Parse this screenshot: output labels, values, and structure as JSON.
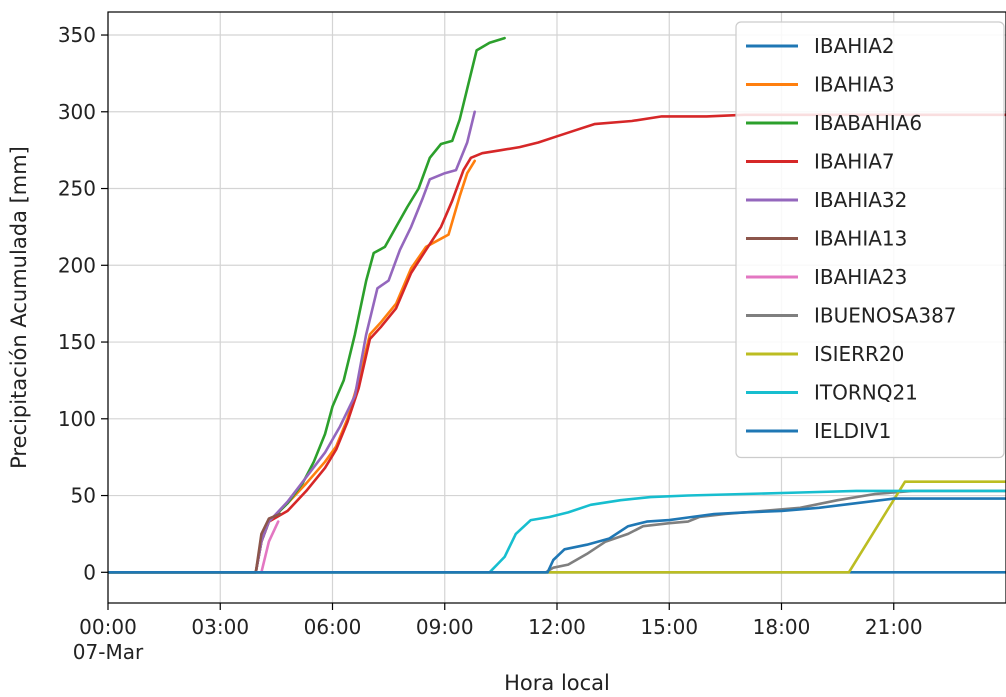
{
  "chart_data": {
    "type": "line",
    "title": "",
    "xlabel": "Hora local",
    "ylabel": "Precipitación Acumulada [mm]",
    "x_unit": "hours since 00:00 07-Mar",
    "xlim": [
      0,
      24
    ],
    "ylim": [
      -20,
      365
    ],
    "grid": true,
    "legend_position": "top-right",
    "x_ticks": [
      {
        "value": 0,
        "label": "00:00",
        "sublabel": "07-Mar"
      },
      {
        "value": 3,
        "label": "03:00",
        "sublabel": ""
      },
      {
        "value": 6,
        "label": "06:00",
        "sublabel": ""
      },
      {
        "value": 9,
        "label": "09:00",
        "sublabel": ""
      },
      {
        "value": 12,
        "label": "12:00",
        "sublabel": ""
      },
      {
        "value": 15,
        "label": "15:00",
        "sublabel": ""
      },
      {
        "value": 18,
        "label": "18:00",
        "sublabel": ""
      },
      {
        "value": 21,
        "label": "21:00",
        "sublabel": ""
      }
    ],
    "y_ticks": [
      0,
      50,
      100,
      150,
      200,
      250,
      300,
      350
    ],
    "series": [
      {
        "name": "IBAHIA2",
        "color": "#1f77b4",
        "points": [
          [
            0,
            0
          ],
          [
            24,
            0
          ]
        ]
      },
      {
        "name": "IBAHIA3",
        "color": "#ff7f0e",
        "points": [
          [
            0,
            0
          ],
          [
            3.95,
            0
          ],
          [
            4.1,
            20
          ],
          [
            4.3,
            33
          ],
          [
            4.8,
            45
          ],
          [
            5.3,
            58
          ],
          [
            5.8,
            72
          ],
          [
            6.1,
            82
          ],
          [
            6.4,
            100
          ],
          [
            6.7,
            125
          ],
          [
            7.0,
            155
          ],
          [
            7.3,
            163
          ],
          [
            7.7,
            175
          ],
          [
            8.1,
            198
          ],
          [
            8.5,
            212
          ],
          [
            8.8,
            216
          ],
          [
            9.1,
            220
          ],
          [
            9.4,
            245
          ],
          [
            9.6,
            260
          ],
          [
            9.8,
            268
          ]
        ]
      },
      {
        "name": "IBABAHIA6",
        "color": "#2ca02c",
        "points": [
          [
            0,
            0
          ],
          [
            3.95,
            0
          ],
          [
            4.1,
            20
          ],
          [
            4.3,
            33
          ],
          [
            4.8,
            45
          ],
          [
            5.2,
            58
          ],
          [
            5.5,
            72
          ],
          [
            5.8,
            90
          ],
          [
            6.0,
            108
          ],
          [
            6.3,
            125
          ],
          [
            6.6,
            155
          ],
          [
            6.9,
            190
          ],
          [
            7.1,
            208
          ],
          [
            7.4,
            212
          ],
          [
            7.7,
            225
          ],
          [
            8.0,
            238
          ],
          [
            8.3,
            250
          ],
          [
            8.6,
            270
          ],
          [
            8.9,
            279
          ],
          [
            9.2,
            281
          ],
          [
            9.4,
            295
          ],
          [
            9.6,
            315
          ],
          [
            9.85,
            340
          ],
          [
            10.2,
            345
          ],
          [
            10.6,
            348
          ]
        ]
      },
      {
        "name": "IBAHIA7",
        "color": "#d62728",
        "points": [
          [
            0,
            0
          ],
          [
            3.95,
            0
          ],
          [
            4.1,
            20
          ],
          [
            4.3,
            33
          ],
          [
            4.8,
            40
          ],
          [
            5.3,
            53
          ],
          [
            5.8,
            68
          ],
          [
            6.1,
            80
          ],
          [
            6.4,
            98
          ],
          [
            6.7,
            120
          ],
          [
            7.0,
            152
          ],
          [
            7.3,
            160
          ],
          [
            7.7,
            172
          ],
          [
            8.1,
            195
          ],
          [
            8.5,
            210
          ],
          [
            8.9,
            225
          ],
          [
            9.2,
            242
          ],
          [
            9.5,
            262
          ],
          [
            9.7,
            270
          ],
          [
            10.0,
            273
          ],
          [
            10.5,
            275
          ],
          [
            11.0,
            277
          ],
          [
            11.5,
            280
          ],
          [
            12.0,
            284
          ],
          [
            12.5,
            288
          ],
          [
            13.0,
            292
          ],
          [
            14.0,
            294
          ],
          [
            14.8,
            297
          ],
          [
            16.0,
            297
          ],
          [
            17.0,
            298
          ],
          [
            18.0,
            298
          ],
          [
            20.0,
            298
          ],
          [
            22.0,
            298
          ],
          [
            24.0,
            298
          ]
        ]
      },
      {
        "name": "IBAHIA32",
        "color": "#9467bd",
        "points": [
          [
            0,
            0
          ],
          [
            3.95,
            0
          ],
          [
            4.1,
            20
          ],
          [
            4.3,
            33
          ],
          [
            4.8,
            46
          ],
          [
            5.3,
            62
          ],
          [
            5.8,
            78
          ],
          [
            6.2,
            95
          ],
          [
            6.6,
            115
          ],
          [
            6.9,
            155
          ],
          [
            7.2,
            185
          ],
          [
            7.5,
            190
          ],
          [
            7.8,
            210
          ],
          [
            8.1,
            225
          ],
          [
            8.4,
            243
          ],
          [
            8.6,
            256
          ],
          [
            9.0,
            260
          ],
          [
            9.3,
            262
          ],
          [
            9.6,
            280
          ],
          [
            9.8,
            300
          ]
        ]
      },
      {
        "name": "IBAHIA13",
        "color": "#8c564b",
        "points": [
          [
            0,
            0
          ],
          [
            3.95,
            0
          ],
          [
            4.1,
            25
          ],
          [
            4.3,
            35
          ],
          [
            4.6,
            38
          ]
        ]
      },
      {
        "name": "IBAHIA23",
        "color": "#e377c2",
        "points": [
          [
            0,
            0
          ],
          [
            4.1,
            0
          ],
          [
            4.3,
            20
          ],
          [
            4.55,
            33
          ]
        ]
      },
      {
        "name": "IBUENOSA387",
        "color": "#7f7f7f",
        "points": [
          [
            0,
            0
          ],
          [
            11.7,
            0
          ],
          [
            11.9,
            3
          ],
          [
            12.3,
            5
          ],
          [
            12.8,
            12
          ],
          [
            13.3,
            20
          ],
          [
            13.9,
            25
          ],
          [
            14.3,
            30
          ],
          [
            15.0,
            32
          ],
          [
            15.5,
            33
          ],
          [
            15.8,
            36
          ],
          [
            16.5,
            38
          ],
          [
            17.5,
            40
          ],
          [
            18.5,
            42
          ],
          [
            19.5,
            47
          ],
          [
            20.5,
            51
          ],
          [
            21.5,
            53
          ],
          [
            24.0,
            53
          ]
        ]
      },
      {
        "name": "ISIERR20",
        "color": "#bcbd22",
        "points": [
          [
            0,
            0
          ],
          [
            11.7,
            0
          ],
          [
            19.8,
            0
          ],
          [
            21.3,
            59
          ],
          [
            24.0,
            59
          ]
        ]
      },
      {
        "name": "ITORNQ21",
        "color": "#17becf",
        "points": [
          [
            0,
            0
          ],
          [
            10.2,
            0
          ],
          [
            10.4,
            5
          ],
          [
            10.6,
            10
          ],
          [
            10.9,
            25
          ],
          [
            11.3,
            34
          ],
          [
            11.8,
            36
          ],
          [
            12.3,
            39
          ],
          [
            12.9,
            44
          ],
          [
            13.7,
            47
          ],
          [
            14.5,
            49
          ],
          [
            15.5,
            50
          ],
          [
            17.0,
            51
          ],
          [
            18.5,
            52
          ],
          [
            20.0,
            53
          ],
          [
            24.0,
            53
          ]
        ]
      },
      {
        "name": "IELDIV1",
        "color": "#1f77b4",
        "points": [
          [
            0,
            0
          ],
          [
            11.75,
            0
          ],
          [
            11.9,
            8
          ],
          [
            12.2,
            15
          ],
          [
            12.8,
            18
          ],
          [
            13.4,
            22
          ],
          [
            13.9,
            30
          ],
          [
            14.4,
            33
          ],
          [
            15.0,
            34
          ],
          [
            15.6,
            36
          ],
          [
            16.2,
            38
          ],
          [
            17.0,
            39
          ],
          [
            18.0,
            40
          ],
          [
            19.0,
            42
          ],
          [
            20.0,
            45
          ],
          [
            21.0,
            48
          ],
          [
            24.0,
            48
          ]
        ]
      }
    ]
  }
}
